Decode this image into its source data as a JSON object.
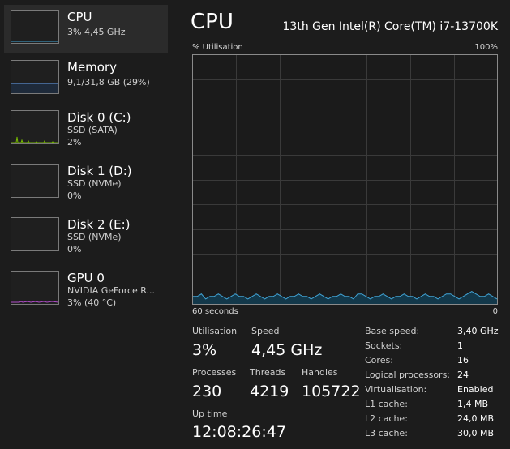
{
  "sidebar": {
    "items": [
      {
        "title": "CPU",
        "line1": "3% 4,45 GHz",
        "line2": "",
        "color": "#41a4d6"
      },
      {
        "title": "Memory",
        "line1": "9,1/31,8 GB (29%)",
        "line2": "",
        "color": "#6aa0e8"
      },
      {
        "title": "Disk 0 (C:)",
        "line1": "SSD (SATA)",
        "line2": "2%",
        "color": "#76b900"
      },
      {
        "title": "Disk 1 (D:)",
        "line1": "SSD (NVMe)",
        "line2": "0%",
        "color": "#76b900"
      },
      {
        "title": "Disk 2 (E:)",
        "line1": "SSD (NVMe)",
        "line2": "0%",
        "color": "#76b900"
      },
      {
        "title": "GPU 0",
        "line1": "NVIDIA GeForce R...",
        "line2": "3% (40 °C)",
        "color": "#b04cc8"
      }
    ]
  },
  "main": {
    "title": "CPU",
    "model": "13th Gen Intel(R) Core(TM) i7-13700K",
    "graph": {
      "ylabel": "% Utilisation",
      "ymax_label": "100%",
      "xlabel": "60 seconds",
      "xmin_label": "0",
      "line_color": "#41a4d6",
      "values": [
        3,
        3,
        4,
        2,
        3,
        3,
        4,
        3,
        2,
        3,
        4,
        3,
        3,
        2,
        3,
        4,
        3,
        2,
        3,
        3,
        4,
        3,
        2,
        3,
        3,
        4,
        3,
        3,
        2,
        3,
        4,
        3,
        2,
        3,
        3,
        4,
        3,
        3,
        2,
        4,
        4,
        3,
        2,
        3,
        3,
        4,
        3,
        2,
        3,
        3,
        4,
        3,
        3,
        2,
        3,
        4,
        3,
        3,
        2,
        3,
        4,
        4,
        3,
        2,
        3,
        4,
        5,
        4,
        3,
        3,
        4,
        3,
        2
      ]
    },
    "stats": {
      "utilisation_label": "Utilisation",
      "utilisation_value": "3%",
      "speed_label": "Speed",
      "speed_value": "4,45 GHz",
      "processes_label": "Processes",
      "processes_value": "230",
      "threads_label": "Threads",
      "threads_value": "4219",
      "handles_label": "Handles",
      "handles_value": "105722",
      "uptime_label": "Up time",
      "uptime_value": "12:08:26:47"
    },
    "specs": [
      {
        "key": "Base speed:",
        "value": "3,40 GHz"
      },
      {
        "key": "Sockets:",
        "value": "1"
      },
      {
        "key": "Cores:",
        "value": "16"
      },
      {
        "key": "Logical processors:",
        "value": "24"
      },
      {
        "key": "Virtualisation:",
        "value": "Enabled"
      },
      {
        "key": "L1 cache:",
        "value": "1,4 MB"
      },
      {
        "key": "L2 cache:",
        "value": "24,0 MB"
      },
      {
        "key": "L3 cache:",
        "value": "30,0 MB"
      }
    ]
  }
}
